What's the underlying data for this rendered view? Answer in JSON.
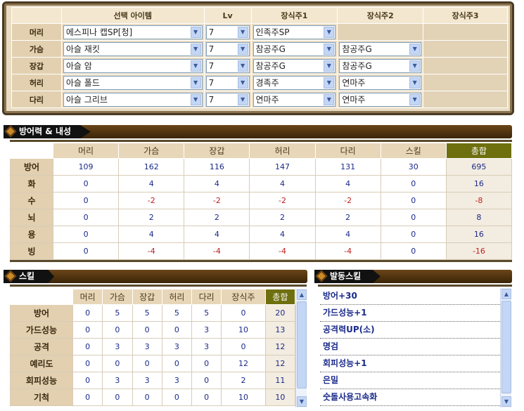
{
  "equipment": {
    "headers": [
      "",
      "선택 아이템",
      "Lv",
      "장식주1",
      "장식주2",
      "장식주3"
    ],
    "rows": [
      {
        "part": "머리",
        "item": "에스피나 캡SP[청]",
        "lv": "7",
        "gem1": "인족주SP",
        "gem2": null,
        "gem3": null
      },
      {
        "part": "가슴",
        "item": "아슬 재킷",
        "lv": "7",
        "gem1": "참공주G",
        "gem2": "참공주G",
        "gem3": null
      },
      {
        "part": "장갑",
        "item": "아슬 암",
        "lv": "7",
        "gem1": "참공주G",
        "gem2": "참공주G",
        "gem3": null
      },
      {
        "part": "허리",
        "item": "아슬 폴드",
        "lv": "7",
        "gem1": "경족주",
        "gem2": "연마주",
        "gem3": null
      },
      {
        "part": "다리",
        "item": "아슬 그리브",
        "lv": "7",
        "gem1": "연마주",
        "gem2": "연마주",
        "gem3": null
      }
    ]
  },
  "defense": {
    "title": "방어력 & 내성",
    "headers": [
      "",
      "머리",
      "가슴",
      "장갑",
      "허리",
      "다리",
      "스킬",
      "총합"
    ],
    "rows": [
      {
        "label": "방어",
        "values": [
          "109",
          "162",
          "116",
          "147",
          "131",
          "30",
          "695"
        ]
      },
      {
        "label": "화",
        "values": [
          "0",
          "4",
          "4",
          "4",
          "4",
          "0",
          "16"
        ]
      },
      {
        "label": "수",
        "values": [
          "0",
          "-2",
          "-2",
          "-2",
          "-2",
          "0",
          "-8"
        ]
      },
      {
        "label": "뇌",
        "values": [
          "0",
          "2",
          "2",
          "2",
          "2",
          "0",
          "8"
        ]
      },
      {
        "label": "용",
        "values": [
          "0",
          "4",
          "4",
          "4",
          "4",
          "0",
          "16"
        ]
      },
      {
        "label": "빙",
        "values": [
          "0",
          "-4",
          "-4",
          "-4",
          "-4",
          "0",
          "-16"
        ]
      }
    ]
  },
  "skills": {
    "title": "스킬",
    "headers": [
      "",
      "머리",
      "가슴",
      "장갑",
      "허리",
      "다리",
      "장식주",
      "총합"
    ],
    "rows": [
      {
        "label": "방어",
        "values": [
          "0",
          "5",
          "5",
          "5",
          "5",
          "0",
          "20"
        ]
      },
      {
        "label": "가드성능",
        "values": [
          "0",
          "0",
          "0",
          "0",
          "3",
          "10",
          "13"
        ]
      },
      {
        "label": "공격",
        "values": [
          "0",
          "3",
          "3",
          "3",
          "3",
          "0",
          "12"
        ]
      },
      {
        "label": "예리도",
        "values": [
          "0",
          "0",
          "0",
          "0",
          "0",
          "12",
          "12"
        ]
      },
      {
        "label": "회피성능",
        "values": [
          "0",
          "3",
          "3",
          "3",
          "0",
          "2",
          "11"
        ]
      },
      {
        "label": "기척",
        "values": [
          "0",
          "0",
          "0",
          "0",
          "0",
          "10",
          "10"
        ]
      }
    ]
  },
  "active_skills": {
    "title": "발동스킬",
    "items": [
      "방어+30",
      "가드성능+1",
      "공격력UP(소)",
      "명검",
      "회피성능+1",
      "은밀",
      "숫돌사용고속화"
    ]
  },
  "colors": {
    "total_header": "#6e7010",
    "positive": "#1a2a8a",
    "negative": "#c02020"
  }
}
